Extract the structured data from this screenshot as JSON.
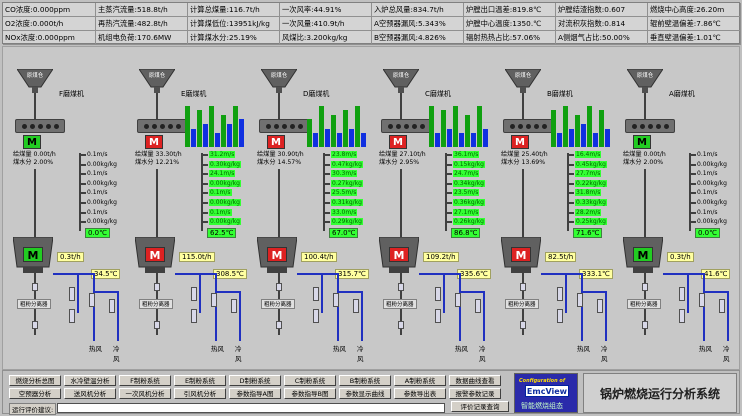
{
  "metrics": [
    [
      "CO浓度:",
      "0.000ppm"
    ],
    [
      "主蒸汽流量:",
      "518.8t/h"
    ],
    [
      "计算总煤量:",
      "116.7t/h"
    ],
    [
      "一次风率:",
      "44.91%"
    ],
    [
      "入炉总风量:",
      "834.7t/h"
    ],
    [
      "炉膛出口温差:",
      "819.8℃"
    ],
    [
      "炉膛结渣指数:",
      "0.607"
    ],
    [
      "燃烧中心高度:",
      "26.20m"
    ],
    [
      "O2浓度:",
      "0.000t/h"
    ],
    [
      "再热汽流量:",
      "482.8t/h"
    ],
    [
      "计算煤低位:",
      "13951kJ/kg"
    ],
    [
      "一次风量:",
      "410.9t/h"
    ],
    [
      "A空预器漏风:",
      "5.343%"
    ],
    [
      "炉膛中心温度:",
      "1350.℃"
    ],
    [
      "对流积灰指数:",
      "0.814"
    ],
    [
      "辊前壁温偏差:",
      "7.86℃"
    ],
    [
      "NOx浓度:",
      "0.000ppm"
    ],
    [
      "机组电负荷:",
      "170.6MW"
    ],
    [
      "计算煤水分:",
      "25.19%"
    ],
    [
      "风煤比:",
      "3.200kg/kg"
    ],
    [
      "B空预器漏风:",
      "4.826%"
    ],
    [
      "辐射热热占比:",
      "57.06%"
    ],
    [
      "A侧烟气占比:",
      "50.00%"
    ],
    [
      "垂直壁温偏差:",
      "1.01℃"
    ]
  ],
  "colors": {
    "motor_on": "#22cc22",
    "motor_off": "#dd2222",
    "bar_green": "#10a010",
    "bar_blue": "#1030e0",
    "flow_green": "#33ff33"
  },
  "mills": [
    {
      "name": "F磨煤机",
      "hopper": "原煤仓",
      "motor_top": "M",
      "running": false,
      "feed": "给煤量 0.00t/h",
      "moisture": "煤水分 2.00%",
      "load": "0.3t/h",
      "temp_out": "0.0℃",
      "temp_in": "34.5℃",
      "flows": [
        "0.1m/s",
        "0.00kg/kg",
        "0.1m/s",
        "0.00kg/kg",
        "0.1m/s",
        "0.00kg/kg",
        "0.1m/s",
        "0.00kg/kg"
      ],
      "bars": []
    },
    {
      "name": "E磨煤机",
      "hopper": "原煤仓",
      "motor_top": "M",
      "running": true,
      "feed": "给煤量 33.30t/h",
      "moisture": "煤水分 12.21%",
      "load": "115.0t/h",
      "temp_out": "62.5℃",
      "temp_in": "308.5℃",
      "flows": [
        "31.2m/s",
        "0.30kg/kg",
        "24.1m/s",
        "0.00kg/kg",
        "0.1m/s",
        "0.00kg/kg",
        "0.1m/s",
        "0.00kg/kg"
      ],
      "bars": [
        0.9,
        0.4,
        0.8,
        0.5,
        0.9,
        0.3,
        0.7,
        0.5,
        0.9,
        0.6
      ]
    },
    {
      "name": "D磨煤机",
      "hopper": "原煤仓",
      "motor_top": "M",
      "running": true,
      "feed": "给煤量 30.90t/h",
      "moisture": "煤水分 14.57%",
      "load": "100.4t/h",
      "temp_out": "67.0℃",
      "temp_in": "315.7℃",
      "flows": [
        "23.8m/s",
        "0.47kg/kg",
        "30.3m/s",
        "0.27kg/kg",
        "25.5m/s",
        "0.31kg/kg",
        "33.0m/s",
        "0.29kg/kg"
      ],
      "bars": [
        0.6,
        0.3,
        0.9,
        0.4,
        0.7,
        0.3,
        0.8,
        0.4,
        0.9,
        0.3
      ]
    },
    {
      "name": "C磨煤机",
      "hopper": "原煤仓",
      "motor_top": "M",
      "running": true,
      "feed": "给煤量 27.10t/h",
      "moisture": "煤水分 2.95%",
      "load": "109.2t/h",
      "temp_out": "86.8℃",
      "temp_in": "335.6℃",
      "flows": [
        "36.1m/s",
        "0.15kg/kg",
        "24.7m/s",
        "0.34kg/kg",
        "23.5m/s",
        "0.36kg/kg",
        "27.1m/s",
        "0.26kg/kg"
      ],
      "bars": [
        0.9,
        0.3,
        0.8,
        0.4,
        0.9,
        0.3,
        0.7,
        0.3,
        0.9,
        0.4
      ]
    },
    {
      "name": "B磨煤机",
      "hopper": "原煤仓",
      "motor_top": "M",
      "running": true,
      "feed": "给煤量 25.40t/h",
      "moisture": "煤水分 13.69%",
      "load": "82.5t/h",
      "temp_out": "71.6℃",
      "temp_in": "333.1℃",
      "flows": [
        "16.4m/s",
        "0.45kg/kg",
        "27.7m/s",
        "0.22kg/kg",
        "31.8m/s",
        "0.33kg/kg",
        "28.2m/s",
        "0.25kg/kg"
      ],
      "bars": [
        0.8,
        0.3,
        0.9,
        0.4,
        0.7,
        0.5,
        0.9,
        0.3,
        0.8,
        0.4
      ]
    },
    {
      "name": "A磨煤机",
      "hopper": "原煤仓",
      "motor_top": "M",
      "running": false,
      "feed": "给煤量 0.00t/h",
      "moisture": "煤水分 2.00%",
      "load": "0.3t/h",
      "temp_out": "0.0℃",
      "temp_in": "41.6℃",
      "flows": [
        "0.1m/s",
        "0.00kg/kg",
        "0.1m/s",
        "0.00kg/kg",
        "0.1m/s",
        "0.00kg/kg",
        "0.1m/s",
        "0.00kg/kg"
      ],
      "bars": []
    }
  ],
  "labels": {
    "separator": "粗粉分离器",
    "hot_air": "热风",
    "cold_air": "冷风"
  },
  "buttons_row1": [
    "燃烧分析总图",
    "水冷壁温分析",
    "F制粉系统",
    "E制粉系统",
    "D制粉系统",
    "C制粉系统",
    "B制粉系统",
    "A制粉系统",
    "数据曲线查看"
  ],
  "buttons_row2": [
    "空预器分析",
    "送风机分析",
    "一次风机分析",
    "引风机分析",
    "参数指导A图",
    "参数指导B图",
    "参数显示曲线",
    "参数导出表",
    "报警参数记录"
  ],
  "eval_label": "运行评价建议:",
  "eval_button": "评价记录查询",
  "logo": {
    "config": "Configuration of",
    "brand": "EmcView",
    "by": "智能燃烧组态"
  },
  "system_title": "锅炉燃烧运行分析系统"
}
